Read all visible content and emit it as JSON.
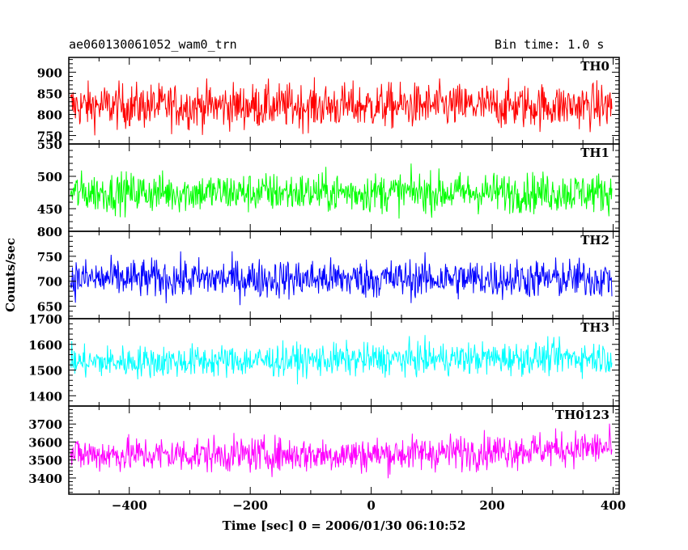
{
  "title_left": "ae060130061052_wam0_trn",
  "title_right": "Bin time: 1.0 s",
  "ylabel": "Counts/sec",
  "xlabel": "Time [sec] 0 = 2006/01/30 06:10:52",
  "chart_data": {
    "type": "line",
    "title": "ae060130061052_wam0_trn",
    "subtitle": "Bin time: 1.0 s",
    "xlabel": "Time [sec] 0 = 2006/01/30 06:10:52",
    "ylabel": "Counts/sec",
    "xlim": [
      -500,
      410
    ],
    "x_ticks": [
      -400,
      -200,
      0,
      200,
      400
    ],
    "x_range_data": [
      -497,
      398
    ],
    "bin_time_s": 1.0,
    "grid": false,
    "panels": [
      {
        "name": "TH0",
        "color": "#ff0000",
        "ylim": [
          730,
          935
        ],
        "y_ticks": [
          750,
          800,
          850,
          900
        ],
        "y_top_label": null,
        "mean": 820,
        "noise": 38
      },
      {
        "name": "TH1",
        "color": "#00ff00",
        "ylim": [
          415,
          550
        ],
        "y_ticks": [
          450,
          500
        ],
        "y_top_label": 550,
        "mean": 475,
        "noise": 22
      },
      {
        "name": "TH2",
        "color": "#0000ff",
        "ylim": [
          625,
          800
        ],
        "y_ticks": [
          650,
          700,
          750
        ],
        "y_top_label": 800,
        "mean": 705,
        "noise": 28
      },
      {
        "name": "TH3",
        "color": "#00ffff",
        "ylim": [
          1360,
          1700
        ],
        "y_ticks": [
          1400,
          1500,
          1600
        ],
        "y_top_label": 1700,
        "mean": 1530,
        "noise": 45
      },
      {
        "name": "TH0123",
        "color": "#ff00ff",
        "ylim": [
          3310,
          3800
        ],
        "y_ticks": [
          3400,
          3500,
          3600,
          3700
        ],
        "y_top_label": null,
        "mean": 3530,
        "noise": 70
      }
    ]
  }
}
